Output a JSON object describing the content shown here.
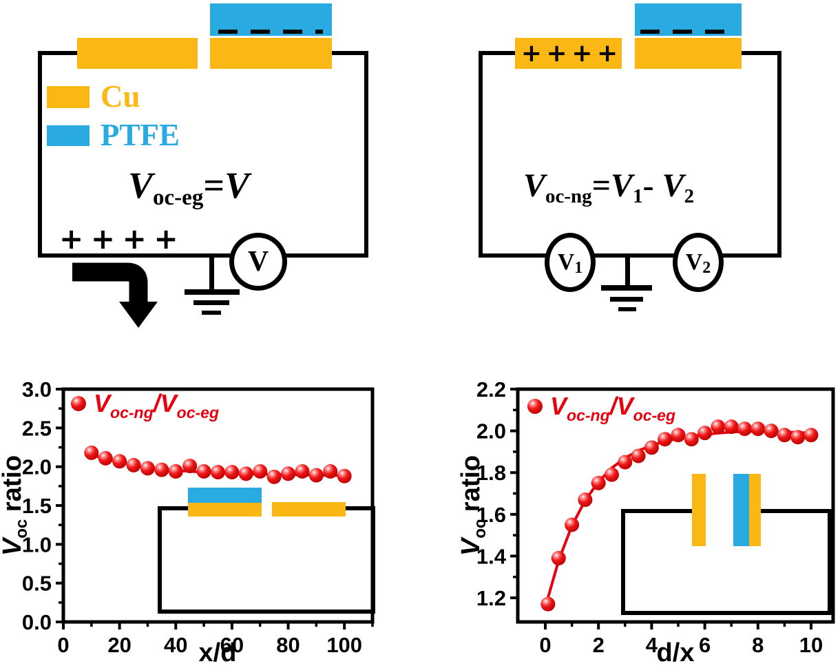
{
  "colors": {
    "cu": "#FBB713",
    "ptfe": "#29ABE2",
    "red": "#E8000F",
    "black": "#000000"
  },
  "materials_legend": {
    "cu_label": "Cu",
    "ptfe_label": "PTFE"
  },
  "diagram_left": {
    "charges": "+ + + +",
    "equation": {
      "v1": "V",
      "sub1": "oc-eg",
      "equals": "=",
      "v2": "V"
    },
    "voltmeter_label": "V"
  },
  "diagram_right": {
    "charges": "+ + + +",
    "equation": {
      "v1": "V",
      "sub1": "oc-ng",
      "equals": "=",
      "v2": "V",
      "sub2": "1",
      "minus": "- ",
      "v3": "V",
      "sub3": "2"
    },
    "voltmeter1": {
      "label": "V",
      "sub": "1"
    },
    "voltmeter2": {
      "label": "V",
      "sub": "2"
    }
  },
  "chart_data": [
    {
      "type": "scatter",
      "title": "",
      "xlabel": "x/d",
      "ylabel": {
        "v": "V",
        "sub": "oc",
        "rest": " ratio"
      },
      "legend": {
        "v1": "V",
        "sub1": "oc-ng",
        "slash": "/",
        "v2": "V",
        "sub2": "oc-eg"
      },
      "legend_position": "top-left-inside",
      "grid": false,
      "xlim": [
        0,
        110
      ],
      "ylim": [
        0.0,
        3.0
      ],
      "xticks": [
        0,
        20,
        40,
        60,
        80,
        100
      ],
      "xtick_labels": [
        "0",
        "20",
        "40",
        "60",
        "80",
        "100"
      ],
      "xminor": [
        10,
        30,
        50,
        70,
        90,
        110
      ],
      "yticks": [
        0.0,
        0.5,
        1.0,
        1.5,
        2.0,
        2.5,
        3.0
      ],
      "ytick_labels": [
        "0.0",
        "0.5",
        "1.0",
        "1.5",
        "2.0",
        "2.5",
        "3.0"
      ],
      "yminor": [
        0.25,
        0.75,
        1.25,
        1.75,
        2.25,
        2.75
      ],
      "x": [
        10,
        15,
        20,
        25,
        30,
        35,
        40,
        45,
        50,
        55,
        60,
        65,
        70,
        75,
        80,
        85,
        90,
        95,
        100
      ],
      "y": [
        2.18,
        2.11,
        2.07,
        2.02,
        1.98,
        1.96,
        1.94,
        2.01,
        1.94,
        1.93,
        1.93,
        1.91,
        1.94,
        1.87,
        1.91,
        1.94,
        1.89,
        1.94,
        1.88
      ],
      "fit": {
        "x": [
          10,
          15,
          20,
          25,
          30,
          35,
          40,
          45,
          50,
          55,
          60,
          65,
          70,
          75,
          80,
          85,
          90,
          95,
          100
        ],
        "y": [
          2.155,
          2.1,
          2.06,
          2.02,
          1.99,
          1.968,
          1.952,
          1.94,
          1.93,
          1.922,
          1.915,
          1.91,
          1.905,
          1.9,
          1.897,
          1.894,
          1.891,
          1.888,
          1.886
        ]
      }
    },
    {
      "type": "scatter",
      "title": "",
      "xlabel": "d/x",
      "ylabel": {
        "v": "V",
        "sub": "oc",
        "rest": " ratio"
      },
      "legend": {
        "v1": "V",
        "sub1": "oc-ng",
        "slash": "/",
        "v2": "V",
        "sub2": "oc-eg"
      },
      "legend_position": "top-left-inside",
      "grid": false,
      "xlim": [
        -1,
        10.9
      ],
      "ylim": [
        1.08,
        2.2
      ],
      "xticks": [
        0,
        2,
        4,
        6,
        8,
        10
      ],
      "xtick_labels": [
        "0",
        "2",
        "4",
        "6",
        "8",
        "10"
      ],
      "xminor": [
        1,
        3,
        5,
        7,
        9
      ],
      "yticks": [
        1.2,
        1.4,
        1.6,
        1.8,
        2.0,
        2.2
      ],
      "ytick_labels": [
        "1.2",
        "1.4",
        "1.6",
        "1.8",
        "2.0",
        "2.2"
      ],
      "yminor": [
        1.3,
        1.5,
        1.7,
        1.9,
        2.1
      ],
      "x": [
        0.1,
        0.5,
        1,
        1.5,
        2,
        2.5,
        3,
        3.5,
        4,
        4.5,
        5,
        5.5,
        6,
        6.5,
        7,
        7.5,
        8,
        8.5,
        9,
        9.5,
        10
      ],
      "y": [
        1.17,
        1.39,
        1.55,
        1.67,
        1.75,
        1.79,
        1.85,
        1.88,
        1.92,
        1.96,
        1.98,
        1.96,
        1.99,
        2.02,
        2.02,
        2.01,
        2.01,
        2.0,
        1.98,
        1.97,
        1.98
      ],
      "fit": {
        "x": [
          0.1,
          0.5,
          1,
          1.5,
          2,
          2.5,
          3,
          3.5,
          4,
          4.5,
          5,
          5.5,
          6,
          6.5,
          7,
          7.5,
          8,
          8.5,
          9,
          9.5,
          10
        ],
        "y": [
          1.2,
          1.378,
          1.545,
          1.667,
          1.756,
          1.822,
          1.87,
          1.905,
          1.93,
          1.95,
          1.963,
          1.974,
          1.982,
          1.989,
          1.994,
          1.997,
          1.998,
          1.997,
          1.995,
          1.992,
          1.99
        ]
      }
    }
  ]
}
